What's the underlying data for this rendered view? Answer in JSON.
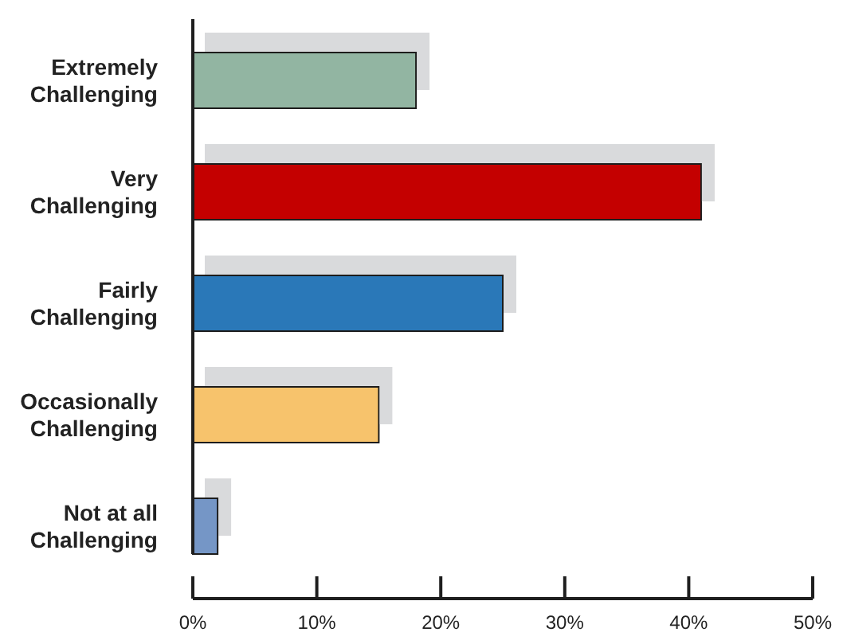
{
  "chart_data": {
    "type": "bar",
    "orientation": "horizontal",
    "categories": [
      "Extremely Challenging",
      "Very Challenging",
      "Fairly Challenging",
      "Occasionally Challenging",
      "Not at all Challenging"
    ],
    "values": [
      18,
      41,
      25,
      15,
      2
    ],
    "colors": [
      "#92b5a2",
      "#c40000",
      "#2a78b8",
      "#f7c36c",
      "#7496c6"
    ],
    "xlim": [
      0,
      50
    ],
    "xticks": [
      {
        "value": 0,
        "label": "0%"
      },
      {
        "value": 10,
        "label": "10%"
      },
      {
        "value": 20,
        "label": "20%"
      },
      {
        "value": 30,
        "label": "30%"
      },
      {
        "value": 40,
        "label": "40%"
      },
      {
        "value": 50,
        "label": "50%"
      }
    ]
  }
}
